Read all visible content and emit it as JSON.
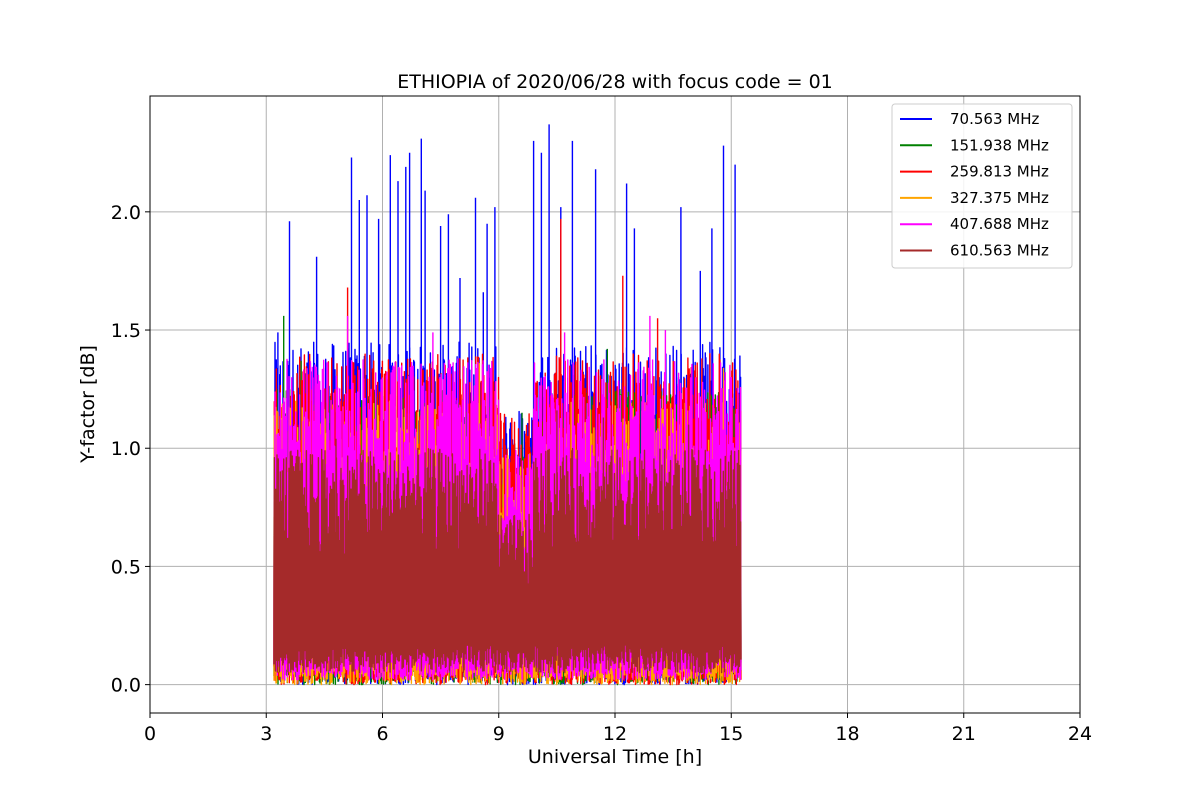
{
  "chart_data": {
    "type": "line",
    "title": "ETHIOPIA of 2020/06/28 with focus code = 01",
    "xlabel": "Universal Time [h]",
    "ylabel": "Y-factor [dB]",
    "xlim": [
      0,
      24
    ],
    "ylim": [
      -0.12,
      2.49
    ],
    "xticks": [
      0,
      3,
      6,
      9,
      12,
      15,
      18,
      21,
      24
    ],
    "yticks": [
      0.0,
      0.5,
      1.0,
      1.5,
      2.0
    ],
    "xtick_labels": [
      "0",
      "3",
      "6",
      "9",
      "12",
      "15",
      "18",
      "21",
      "24"
    ],
    "ytick_labels": [
      "0.0",
      "0.5",
      "1.0",
      "1.5",
      "2.0"
    ],
    "grid": true,
    "legend_position": "top-right",
    "time_range": [
      3.2,
      15.25
    ],
    "series": [
      {
        "name": " 70.563 MHz",
        "color": "#0000ff",
        "base": [
          0.0,
          1.45
        ],
        "peaks": [
          [
            3.3,
            1.49
          ],
          [
            3.6,
            1.96
          ],
          [
            4.3,
            1.81
          ],
          [
            5.2,
            2.23
          ],
          [
            5.4,
            2.05
          ],
          [
            5.6,
            2.07
          ],
          [
            5.9,
            1.97
          ],
          [
            6.2,
            2.24
          ],
          [
            6.4,
            2.13
          ],
          [
            6.6,
            2.19
          ],
          [
            6.7,
            2.25
          ],
          [
            7.0,
            2.31
          ],
          [
            7.1,
            2.09
          ],
          [
            7.5,
            1.94
          ],
          [
            7.7,
            1.99
          ],
          [
            8.0,
            1.72
          ],
          [
            8.4,
            2.06
          ],
          [
            8.6,
            1.66
          ],
          [
            8.7,
            1.95
          ],
          [
            8.9,
            2.02
          ],
          [
            9.9,
            2.3
          ],
          [
            10.1,
            2.25
          ],
          [
            10.3,
            2.37
          ],
          [
            10.6,
            2.02
          ],
          [
            10.9,
            2.3
          ],
          [
            11.5,
            2.18
          ],
          [
            12.3,
            2.12
          ],
          [
            12.5,
            1.93
          ],
          [
            13.7,
            2.02
          ],
          [
            14.2,
            1.75
          ],
          [
            14.5,
            1.93
          ],
          [
            14.8,
            2.28
          ],
          [
            15.1,
            2.2
          ]
        ]
      },
      {
        "name": "151.938 MHz",
        "color": "#008000",
        "base": [
          0.0,
          1.25
        ],
        "peaks": [
          [
            3.45,
            1.56
          ],
          [
            3.9,
            1.37
          ],
          [
            9.6,
            1.15
          ],
          [
            11.8,
            1.42
          ]
        ]
      },
      {
        "name": "259.813 MHz",
        "color": "#ff0000",
        "base": [
          0.0,
          1.4
        ],
        "peaks": [
          [
            5.1,
            1.68
          ],
          [
            10.6,
            1.97
          ],
          [
            12.2,
            1.73
          ],
          [
            13.1,
            1.55
          ]
        ]
      },
      {
        "name": "327.375 MHz",
        "color": "#ffa500",
        "base": [
          0.0,
          1.2
        ],
        "peaks": [
          [
            8.5,
            1.36
          ],
          [
            14.8,
            1.34
          ]
        ]
      },
      {
        "name": "407.688 MHz",
        "color": "#ff00ff",
        "base": [
          0.02,
          1.38
        ],
        "peaks": [
          [
            5.1,
            1.56
          ],
          [
            7.3,
            1.49
          ],
          [
            10.7,
            1.49
          ],
          [
            12.9,
            1.56
          ],
          [
            13.3,
            1.5
          ]
        ]
      },
      {
        "name": "610.563 MHz",
        "color": "#a52a2a",
        "base": [
          0.05,
          1.0
        ],
        "peaks": [
          [
            4.8,
            1.04
          ],
          [
            10.5,
            1.16
          ],
          [
            11.7,
            1.13
          ],
          [
            13.9,
            1.1
          ]
        ]
      }
    ]
  }
}
